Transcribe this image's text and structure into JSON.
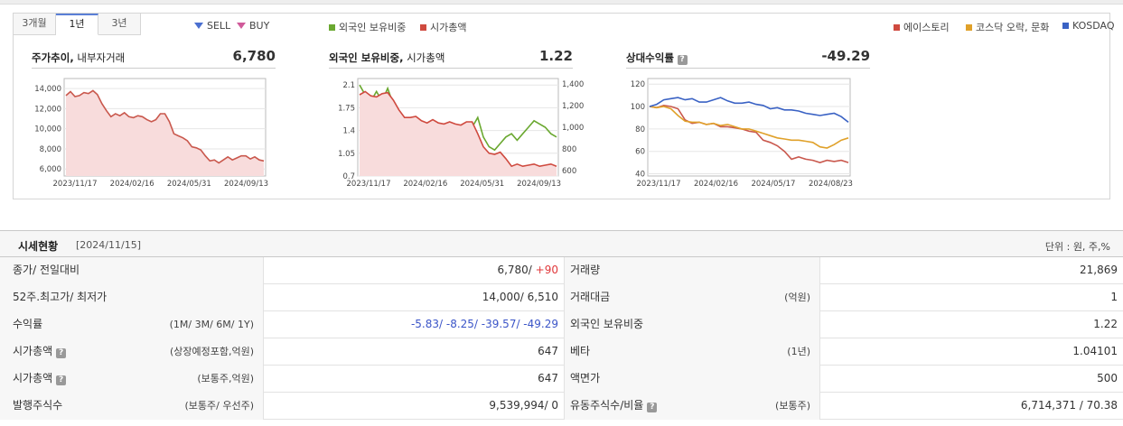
{
  "tabs": [
    "3개월",
    "1년",
    "3년"
  ],
  "active_tab": 1,
  "legend_left": [
    {
      "label": "SELL",
      "color": "#4a6fd0",
      "shape": "triangle-down"
    },
    {
      "label": "BUY",
      "color": "#d05a9a",
      "shape": "triangle-down"
    },
    {
      "label": "외국인 보유비중",
      "color": "#6aa830",
      "shape": "square"
    },
    {
      "label": "시가총액",
      "color": "#cf4a3f",
      "shape": "square"
    }
  ],
  "legend_right": [
    {
      "label": "에이스토리",
      "color": "#cf4a3f"
    },
    {
      "label": "코스닥 오락, 문화",
      "color": "#e0a12a"
    },
    {
      "label": "KOSDAQ",
      "color": "#3a62c4"
    }
  ],
  "panels": {
    "price": {
      "title_bold": "주가추이,",
      "title_rest": " 내부자거래",
      "value": "6,780"
    },
    "foreign": {
      "title_bold": "외국인 보유비중,",
      "title_rest": " 시가총액",
      "value": "1.22"
    },
    "relative": {
      "title_bold": "상대수익률",
      "value": "-49.29"
    }
  },
  "chart_data": [
    {
      "type": "area",
      "x_ticks": [
        "2023/11/17",
        "2024/02/16",
        "2024/05/31",
        "2024/09/13"
      ],
      "y_ticks": [
        "14,000",
        "12,000",
        "10,000",
        "8,000",
        "6,000"
      ],
      "ylim": [
        5300,
        15000
      ],
      "series": [
        {
          "color": "#c9584d",
          "values": [
            13300,
            13700,
            13200,
            13300,
            13600,
            13500,
            13800,
            13400,
            12500,
            11800,
            11200,
            11500,
            11300,
            11600,
            11200,
            11100,
            11300,
            11200,
            10900,
            10700,
            10900,
            11500,
            11500,
            10700,
            9500,
            9300,
            9100,
            8800,
            8200,
            8100,
            7900,
            7300,
            6800,
            6900,
            6600,
            6900,
            7200,
            6900,
            7100,
            7300,
            7300,
            7000,
            7200,
            6900,
            6800
          ]
        }
      ]
    },
    {
      "type": "line",
      "x_ticks": [
        "2023/11/17",
        "2024/02/16",
        "2024/05/31",
        "2024/09/13"
      ],
      "y_ticks_left": [
        "2.1",
        "1.75",
        "1.4",
        "1.05",
        "0.7"
      ],
      "y_ticks_right": [
        "1,400",
        "1,200",
        "1,000",
        "800",
        "600"
      ],
      "ylim_left": [
        0.7,
        2.2
      ],
      "ylim_right": [
        550,
        1450
      ],
      "series": [
        {
          "axis": "left",
          "color": "#6aa830",
          "values": [
            2.1,
            1.95,
            1.85,
            2.0,
            1.85,
            2.05,
            1.8,
            1.3,
            1.1,
            1.0,
            0.9,
            0.95,
            1.1,
            1.25,
            1.2,
            1.05,
            1.1,
            1.0,
            1.05,
            1.25,
            1.45,
            1.6,
            1.3,
            1.15,
            1.1,
            1.2,
            1.3,
            1.35,
            1.25,
            1.35,
            1.45,
            1.55,
            1.5,
            1.45,
            1.35,
            1.3
          ],
          "name_ref": "foreign"
        },
        {
          "axis": "right",
          "color": "#cf4a3f",
          "values": [
            1300,
            1330,
            1290,
            1280,
            1310,
            1320,
            1250,
            1160,
            1090,
            1090,
            1100,
            1060,
            1040,
            1070,
            1040,
            1030,
            1050,
            1030,
            1020,
            1050,
            1050,
            940,
            820,
            760,
            750,
            770,
            710,
            640,
            660,
            640,
            650,
            660,
            640,
            650,
            660,
            640
          ]
        }
      ]
    },
    {
      "type": "line",
      "x_ticks": [
        "2023/11/17",
        "2024/02/16",
        "2024/05/17",
        "2024/08/23"
      ],
      "y_ticks": [
        "120",
        "100",
        "80",
        "60",
        "40"
      ],
      "ylim": [
        38,
        125
      ],
      "series": [
        {
          "label_ref": "에이스토리",
          "color": "#c9584d",
          "values": [
            100,
            99,
            101,
            100,
            98,
            88,
            85,
            86,
            84,
            85,
            82,
            82,
            81,
            80,
            78,
            77,
            70,
            68,
            65,
            60,
            53,
            55,
            53,
            52,
            50,
            52,
            51,
            52,
            50
          ]
        },
        {
          "label_ref": "코스닥 오락, 문화",
          "color": "#e0a12a",
          "values": [
            100,
            99,
            100,
            98,
            92,
            87,
            86,
            86,
            84,
            85,
            83,
            84,
            82,
            80,
            80,
            78,
            76,
            74,
            72,
            71,
            70,
            70,
            69,
            68,
            64,
            63,
            66,
            70,
            72
          ]
        },
        {
          "label_ref": "KOSDAQ",
          "color": "#3a62c4",
          "values": [
            100,
            102,
            106,
            107,
            108,
            106,
            107,
            104,
            104,
            106,
            108,
            105,
            103,
            103,
            104,
            102,
            101,
            98,
            99,
            97,
            97,
            96,
            94,
            93,
            92,
            93,
            94,
            91,
            86
          ]
        }
      ]
    }
  ],
  "table": {
    "title": "시세현황",
    "date": "[2024/11/15]",
    "unit": "단위 : 원, 주,%",
    "rows": [
      {
        "l_label": "종가/ 전일대비",
        "l_sub": "",
        "l_val": "6,780/",
        "l_val2": "+90",
        "r_label": "거래량",
        "r_sub": "",
        "r_val": "21,869"
      },
      {
        "l_label": "52주.최고가/ 최저가",
        "l_sub": "",
        "l_val": "14,000/ 6,510",
        "l_val2": "",
        "r_label": "거래대금",
        "r_sub": "(억원)",
        "r_val": "1"
      },
      {
        "l_label": "수익률",
        "l_sub": "(1M/ 3M/ 6M/ 1Y)",
        "l_val": "-5.83/ -8.25/ -39.57/ -49.29",
        "l_val2": "",
        "r_label": "외국인 보유비중",
        "r_sub": "",
        "r_val": "1.22"
      },
      {
        "l_label": "시가총액",
        "l_sub": "(상장예정포함,억원)",
        "l_val": "647",
        "l_val2": "",
        "r_label": "베타",
        "r_sub": "(1년)",
        "r_val": "1.04101"
      },
      {
        "l_label": "시가총액",
        "l_sub": "(보통주,억원)",
        "l_val": "647",
        "l_val2": "",
        "r_label": "액면가",
        "r_sub": "",
        "r_val": "500"
      },
      {
        "l_label": "발행주식수",
        "l_sub": "(보통주/ 우선주)",
        "l_val": "9,539,994/ 0",
        "l_val2": "",
        "r_label": "유동주식수/비율",
        "r_sub": "(보통주)",
        "r_val": "6,714,371 / 70.38"
      }
    ]
  }
}
